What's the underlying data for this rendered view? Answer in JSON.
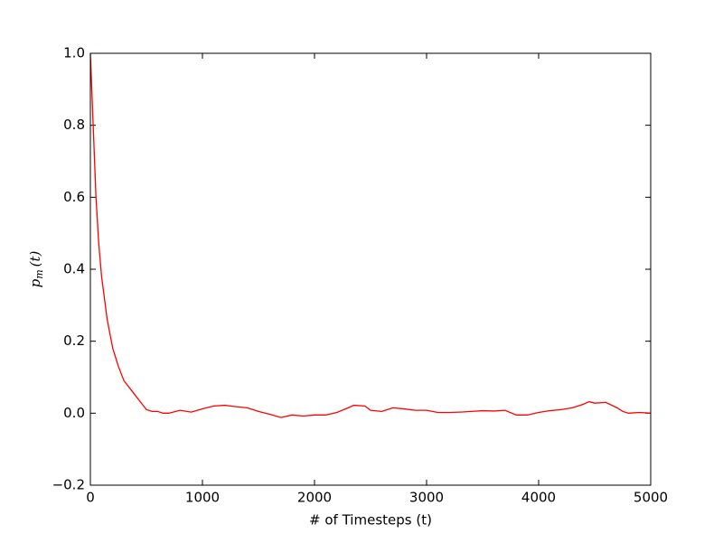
{
  "chart_data": {
    "type": "line",
    "x_label": "# of Timesteps (t)",
    "y_label": {
      "base": "p",
      "sub": "m",
      "rest": "(t)"
    },
    "x": [
      0,
      25,
      50,
      75,
      100,
      150,
      200,
      250,
      300,
      350,
      400,
      450,
      500,
      550,
      600,
      650,
      700,
      800,
      900,
      1000,
      1100,
      1200,
      1300,
      1400,
      1500,
      1600,
      1700,
      1800,
      1900,
      2000,
      2100,
      2200,
      2300,
      2350,
      2450,
      2500,
      2600,
      2700,
      2800,
      2900,
      3000,
      3100,
      3200,
      3300,
      3400,
      3500,
      3600,
      3700,
      3800,
      3900,
      4000,
      4100,
      4200,
      4300,
      4400,
      4450,
      4500,
      4600,
      4700,
      4750,
      4800,
      4900,
      5000
    ],
    "series": [
      {
        "name": "p_m(t)",
        "color": "#ff0000",
        "values": [
          1.0,
          0.8,
          0.6,
          0.47,
          0.38,
          0.26,
          0.18,
          0.13,
          0.09,
          0.07,
          0.05,
          0.03,
          0.01,
          0.005,
          0.005,
          0.0,
          0.0,
          0.008,
          0.003,
          0.012,
          0.02,
          0.022,
          0.018,
          0.015,
          0.005,
          -0.003,
          -0.012,
          -0.005,
          -0.008,
          -0.005,
          -0.005,
          0.002,
          0.015,
          0.022,
          0.02,
          0.008,
          0.005,
          0.015,
          0.012,
          0.008,
          0.008,
          0.002,
          0.002,
          0.003,
          0.005,
          0.007,
          0.006,
          0.008,
          -0.005,
          -0.005,
          0.002,
          0.007,
          0.01,
          0.015,
          0.025,
          0.032,
          0.028,
          0.03,
          0.015,
          0.005,
          0.0,
          0.002,
          0.0
        ]
      }
    ],
    "xlim": [
      0,
      5000
    ],
    "xticks": [
      0,
      1000,
      2000,
      3000,
      4000,
      5000
    ],
    "ylim": [
      -0.2,
      1.0
    ],
    "yticks": [
      {
        "value": -0.2,
        "label": "−0.2"
      },
      {
        "value": 0,
        "label": "0.0"
      },
      {
        "value": 0.2,
        "label": "0.2"
      },
      {
        "value": 0.4,
        "label": "0.4"
      },
      {
        "value": 0.6,
        "label": "0.6"
      },
      {
        "value": 0.8,
        "label": "0.8"
      },
      {
        "value": 1.0,
        "label": "1.0"
      }
    ],
    "grid": false
  }
}
